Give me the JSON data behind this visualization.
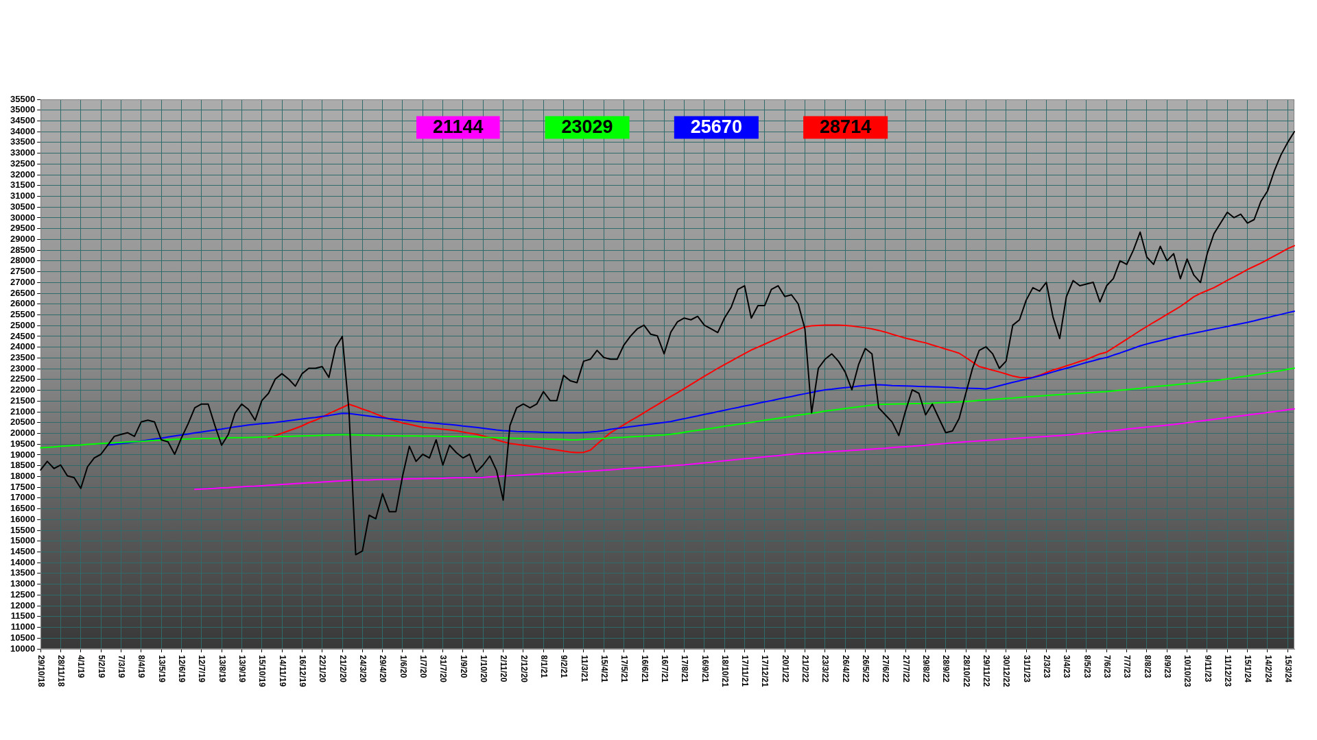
{
  "chart_data": {
    "type": "line",
    "categories": [
      "29/10/18",
      null,
      null,
      "28/11/18",
      null,
      null,
      "4/1/19",
      null,
      null,
      "5/2/19",
      null,
      null,
      "7/3/19",
      null,
      null,
      "8/4/19",
      null,
      null,
      "13/5/19",
      null,
      null,
      "12/6/19",
      null,
      null,
      "12/7/19",
      null,
      null,
      "13/8/19",
      null,
      null,
      "13/9/19",
      null,
      null,
      "15/10/19",
      null,
      null,
      "14/11/19",
      null,
      null,
      "16/12/19",
      null,
      null,
      "22/1/20",
      null,
      null,
      "21/2/20",
      null,
      null,
      "24/3/20",
      null,
      null,
      "29/4/20",
      null,
      null,
      "1/6/20",
      null,
      null,
      "1/7/20",
      null,
      null,
      "31/7/20",
      null,
      null,
      "1/9/20",
      null,
      null,
      "1/10/20",
      null,
      null,
      "2/11/20",
      null,
      null,
      "2/12/20",
      null,
      null,
      "8/1/21",
      null,
      null,
      "9/2/21",
      null,
      null,
      "11/3/21",
      null,
      null,
      "15/4/21",
      null,
      null,
      "17/5/21",
      null,
      null,
      "16/6/21",
      null,
      null,
      "16/7/21",
      null,
      null,
      "17/8/21",
      null,
      null,
      "16/9/21",
      null,
      null,
      "18/10/21",
      null,
      null,
      "17/11/21",
      null,
      null,
      "17/12/21",
      null,
      null,
      "20/1/22",
      null,
      null,
      "21/2/22",
      null,
      null,
      "23/3/22",
      null,
      null,
      "26/4/22",
      null,
      null,
      "26/5/22",
      null,
      null,
      "27/6/22",
      null,
      null,
      "27/7/22",
      null,
      null,
      "29/8/22",
      null,
      null,
      "28/9/22",
      null,
      null,
      "28/10/22",
      null,
      null,
      "29/11/22",
      null,
      null,
      "30/12/22",
      null,
      null,
      "31/1/23",
      null,
      null,
      "2/3/23",
      null,
      null,
      "3/4/23",
      null,
      null,
      "8/5/23",
      null,
      null,
      "7/6/23",
      null,
      null,
      "7/7/23",
      null,
      null,
      "8/8/23",
      null,
      null,
      "8/9/23",
      null,
      null,
      "10/10/23",
      null,
      null,
      "9/11/23",
      null,
      null,
      "11/12/23",
      null,
      null,
      "15/1/24",
      null,
      null,
      "14/2/24",
      null,
      null,
      "15/3/24",
      null
    ],
    "series": [
      {
        "color": "#000000",
        "values": [
          18300,
          18700,
          18370,
          18530,
          18030,
          17950,
          17450,
          18450,
          18860,
          19030,
          19450,
          19860,
          19950,
          20030,
          19860,
          20530,
          20610,
          20530,
          19700,
          19610,
          19030,
          19780,
          20440,
          21190,
          21360,
          21360,
          20360,
          19450,
          19950,
          20940,
          21360,
          21110,
          20610,
          21520,
          21860,
          22520,
          22770,
          22520,
          22190,
          22770,
          23020,
          23020,
          23100,
          22600,
          24000,
          24500,
          21030,
          14370,
          14540,
          16200,
          16040,
          17200,
          16370,
          16370,
          18030,
          19400,
          18700,
          19030,
          18860,
          19700,
          18530,
          19450,
          19110,
          18860,
          19030,
          18200,
          18530,
          18950,
          18280,
          16900,
          20360,
          21190,
          21360,
          21190,
          21360,
          21940,
          21520,
          21520,
          22690,
          22440,
          22350,
          23350,
          23440,
          23850,
          23520,
          23440,
          23440,
          24100,
          24520,
          24850,
          25020,
          24600,
          24520,
          23690,
          24700,
          25180,
          25350,
          25270,
          25430,
          25020,
          24850,
          24680,
          25350,
          25850,
          26680,
          26850,
          25350,
          25930,
          25930,
          26680,
          26850,
          26350,
          26430,
          26010,
          24850,
          20950,
          23020,
          23440,
          23690,
          23350,
          22850,
          22020,
          23190,
          23940,
          23690,
          21190,
          20860,
          20530,
          19900,
          21030,
          22020,
          21860,
          20860,
          21360,
          20690,
          20030,
          20110,
          20690,
          21860,
          23020,
          23850,
          24020,
          23690,
          23020,
          23350,
          25020,
          25270,
          26180,
          26760,
          26600,
          27010,
          25400,
          24400,
          26350,
          27090,
          26850,
          26930,
          27010,
          26100,
          26850,
          27180,
          28010,
          27840,
          28510,
          29340,
          28180,
          27840,
          28680,
          28010,
          28340,
          27180,
          28090,
          27350,
          27000,
          28340,
          29260,
          29760,
          30260,
          30010,
          30170,
          29760,
          29920,
          30760,
          31250,
          32170,
          32920,
          33500,
          34000
        ]
      },
      {
        "color": "#ff00ff",
        "values": [
          null,
          null,
          null,
          null,
          null,
          null,
          null,
          null,
          null,
          null,
          null,
          null,
          null,
          null,
          null,
          null,
          null,
          null,
          null,
          null,
          null,
          null,
          null,
          17400,
          17420,
          17430,
          17450,
          17470,
          17480,
          17500,
          17520,
          17540,
          17550,
          17570,
          17590,
          17610,
          17630,
          17650,
          17670,
          17690,
          17710,
          17720,
          17740,
          17760,
          17780,
          17800,
          17820,
          17830,
          17840,
          17840,
          17850,
          17860,
          17860,
          17870,
          17880,
          17890,
          17890,
          17900,
          17910,
          17910,
          17920,
          17930,
          17940,
          17940,
          17950,
          17950,
          17960,
          17980,
          18000,
          18020,
          18040,
          18050,
          18070,
          18090,
          18110,
          18130,
          18140,
          18160,
          18180,
          18200,
          18210,
          18230,
          18250,
          18270,
          18290,
          18310,
          18330,
          18360,
          18380,
          18400,
          18420,
          18440,
          18460,
          18480,
          18500,
          18520,
          18540,
          18570,
          18600,
          18630,
          18660,
          18700,
          18730,
          18760,
          18790,
          18820,
          18850,
          18880,
          18910,
          18940,
          18970,
          19000,
          19030,
          19050,
          19070,
          19090,
          19110,
          19130,
          19150,
          19170,
          19190,
          19210,
          19230,
          19250,
          19270,
          19290,
          19310,
          19340,
          19360,
          19380,
          19400,
          19430,
          19450,
          19480,
          19510,
          19530,
          19560,
          19590,
          19610,
          19630,
          19650,
          19670,
          19690,
          19710,
          19730,
          19750,
          19780,
          19800,
          19820,
          19840,
          19860,
          19880,
          19900,
          19920,
          19950,
          19980,
          20010,
          20040,
          20070,
          20100,
          20130,
          20160,
          20200,
          20230,
          20260,
          20290,
          20320,
          20350,
          20380,
          20410,
          20450,
          20490,
          20530,
          20570,
          20610,
          20650,
          20690,
          20730,
          20770,
          20810,
          20850,
          20890,
          20930,
          20970,
          21010,
          21050,
          21100,
          21140
        ]
      },
      {
        "color": "#00ff00",
        "values": [
          19330,
          19350,
          19370,
          19400,
          19420,
          19440,
          19460,
          19490,
          19510,
          19530,
          19550,
          19560,
          19580,
          19600,
          19620,
          19630,
          19650,
          19670,
          19680,
          19700,
          19720,
          19730,
          19740,
          19750,
          19760,
          19760,
          19770,
          19780,
          19790,
          19800,
          19800,
          19810,
          19820,
          19830,
          19840,
          19850,
          19860,
          19860,
          19870,
          19880,
          19890,
          19900,
          19910,
          19920,
          19930,
          19940,
          19940,
          19930,
          19920,
          19910,
          19900,
          19900,
          19890,
          19890,
          19880,
          19880,
          19880,
          19870,
          19870,
          19870,
          19860,
          19860,
          19860,
          19860,
          19850,
          19840,
          19820,
          19810,
          19800,
          19790,
          19780,
          19770,
          19760,
          19750,
          19740,
          19740,
          19730,
          19720,
          19710,
          19700,
          19700,
          19720,
          19740,
          19750,
          19770,
          19790,
          19810,
          19820,
          19840,
          19860,
          19870,
          19890,
          19910,
          19930,
          19960,
          20000,
          20050,
          20100,
          20140,
          20190,
          20230,
          20280,
          20330,
          20370,
          20420,
          20460,
          20510,
          20560,
          20610,
          20650,
          20700,
          20750,
          20790,
          20840,
          20890,
          20930,
          20980,
          21030,
          21070,
          21110,
          21150,
          21190,
          21230,
          21270,
          21310,
          21340,
          21350,
          21360,
          21370,
          21370,
          21380,
          21380,
          21390,
          21400,
          21420,
          21430,
          21450,
          21460,
          21480,
          21500,
          21530,
          21550,
          21570,
          21600,
          21620,
          21640,
          21670,
          21690,
          21710,
          21730,
          21760,
          21780,
          21800,
          21820,
          21840,
          21860,
          21880,
          21900,
          21920,
          21940,
          21970,
          22000,
          22030,
          22060,
          22090,
          22130,
          22160,
          22190,
          22220,
          22250,
          22280,
          22310,
          22340,
          22380,
          22410,
          22440,
          22480,
          22530,
          22570,
          22620,
          22660,
          22710,
          22760,
          22810,
          22860,
          22910,
          22970,
          23030
        ]
      },
      {
        "color": "#0000ff",
        "values": [
          null,
          null,
          null,
          null,
          null,
          null,
          null,
          null,
          null,
          null,
          19460,
          19490,
          19530,
          19560,
          19600,
          19640,
          19690,
          19740,
          19780,
          19830,
          19880,
          19930,
          19970,
          20020,
          20060,
          20110,
          20160,
          20200,
          20250,
          20300,
          20340,
          20390,
          20420,
          20450,
          20480,
          20510,
          20550,
          20590,
          20630,
          20670,
          20710,
          20740,
          20790,
          20830,
          20880,
          20930,
          20920,
          20880,
          20840,
          20800,
          20760,
          20720,
          20680,
          20650,
          20620,
          20590,
          20560,
          20530,
          20500,
          20470,
          20440,
          20410,
          20380,
          20340,
          20310,
          20280,
          20240,
          20200,
          20160,
          20130,
          20110,
          20090,
          20080,
          20070,
          20060,
          20050,
          20040,
          20040,
          20030,
          20030,
          20030,
          20040,
          20060,
          20090,
          20130,
          20190,
          20230,
          20270,
          20310,
          20350,
          20390,
          20430,
          20470,
          20510,
          20550,
          20620,
          20680,
          20750,
          20810,
          20880,
          20940,
          21010,
          21070,
          21140,
          21200,
          21270,
          21330,
          21400,
          21460,
          21520,
          21590,
          21650,
          21710,
          21780,
          21840,
          21900,
          21960,
          22020,
          22050,
          22090,
          22120,
          22150,
          22190,
          22220,
          22250,
          22260,
          22240,
          22220,
          22210,
          22200,
          22190,
          22180,
          22170,
          22160,
          22150,
          22140,
          22130,
          22110,
          22100,
          22090,
          22080,
          22060,
          22130,
          22210,
          22290,
          22370,
          22440,
          22520,
          22590,
          22670,
          22760,
          22850,
          22940,
          23020,
          23110,
          23200,
          23290,
          23370,
          23460,
          23520,
          23630,
          23730,
          23840,
          23950,
          24060,
          24150,
          24230,
          24300,
          24380,
          24460,
          24530,
          24590,
          24650,
          24710,
          24780,
          24840,
          24900,
          24960,
          25030,
          25090,
          25150,
          25220,
          25300,
          25370,
          25450,
          25520,
          25600,
          25670
        ]
      },
      {
        "color": "#ff0000",
        "values": [
          null,
          null,
          null,
          null,
          null,
          null,
          null,
          null,
          null,
          null,
          null,
          null,
          null,
          null,
          null,
          null,
          null,
          null,
          null,
          null,
          null,
          null,
          null,
          null,
          null,
          null,
          null,
          null,
          null,
          null,
          null,
          null,
          null,
          null,
          19780,
          19890,
          20010,
          20120,
          20230,
          20350,
          20500,
          20610,
          20760,
          20920,
          21060,
          21200,
          21350,
          21250,
          21130,
          21030,
          20900,
          20780,
          20660,
          20570,
          20480,
          20420,
          20350,
          20280,
          20250,
          20220,
          20190,
          20160,
          20120,
          20060,
          20010,
          19960,
          19880,
          19800,
          19700,
          19610,
          19530,
          19490,
          19450,
          19410,
          19370,
          19320,
          19270,
          19230,
          19180,
          19130,
          19110,
          19120,
          19220,
          19500,
          19770,
          20030,
          20220,
          20400,
          20590,
          20770,
          20960,
          21150,
          21330,
          21520,
          21710,
          21890,
          22080,
          22270,
          22460,
          22650,
          22830,
          23020,
          23190,
          23360,
          23530,
          23700,
          23870,
          24000,
          24140,
          24280,
          24410,
          24550,
          24690,
          24820,
          24940,
          24990,
          25010,
          25020,
          25020,
          25020,
          25010,
          24980,
          24940,
          24900,
          24850,
          24780,
          24700,
          24600,
          24510,
          24420,
          24350,
          24270,
          24200,
          24100,
          24010,
          23910,
          23820,
          23720,
          23520,
          23310,
          23100,
          23020,
          22930,
          22850,
          22760,
          22660,
          22600,
          22590,
          22600,
          22700,
          22820,
          22940,
          23030,
          23130,
          23230,
          23340,
          23430,
          23560,
          23690,
          23770,
          23970,
          24170,
          24370,
          24570,
          24770,
          24960,
          25150,
          25330,
          25520,
          25700,
          25890,
          26110,
          26340,
          26500,
          26630,
          26760,
          26930,
          27100,
          27260,
          27430,
          27600,
          27750,
          27900,
          28060,
          28230,
          28400,
          28570,
          28710
        ]
      }
    ],
    "ylim": [
      10000,
      35500
    ],
    "yticks": [
      10000,
      10500,
      11000,
      11500,
      12000,
      12500,
      13000,
      13500,
      14000,
      14500,
      15000,
      15500,
      16000,
      16500,
      17000,
      17500,
      18000,
      18500,
      19000,
      19500,
      20000,
      20500,
      21000,
      21500,
      22000,
      22500,
      23000,
      23500,
      24000,
      24500,
      25000,
      25500,
      26000,
      26500,
      27000,
      27500,
      28000,
      28500,
      29000,
      29500,
      30000,
      30500,
      31000,
      31500,
      32000,
      32500,
      33000,
      33500,
      34000,
      34500,
      35000,
      35500
    ],
    "grid": true,
    "marker": "none",
    "line_style": "solid",
    "annotations": [
      "21144",
      "23029",
      "25670",
      "28714"
    ]
  }
}
